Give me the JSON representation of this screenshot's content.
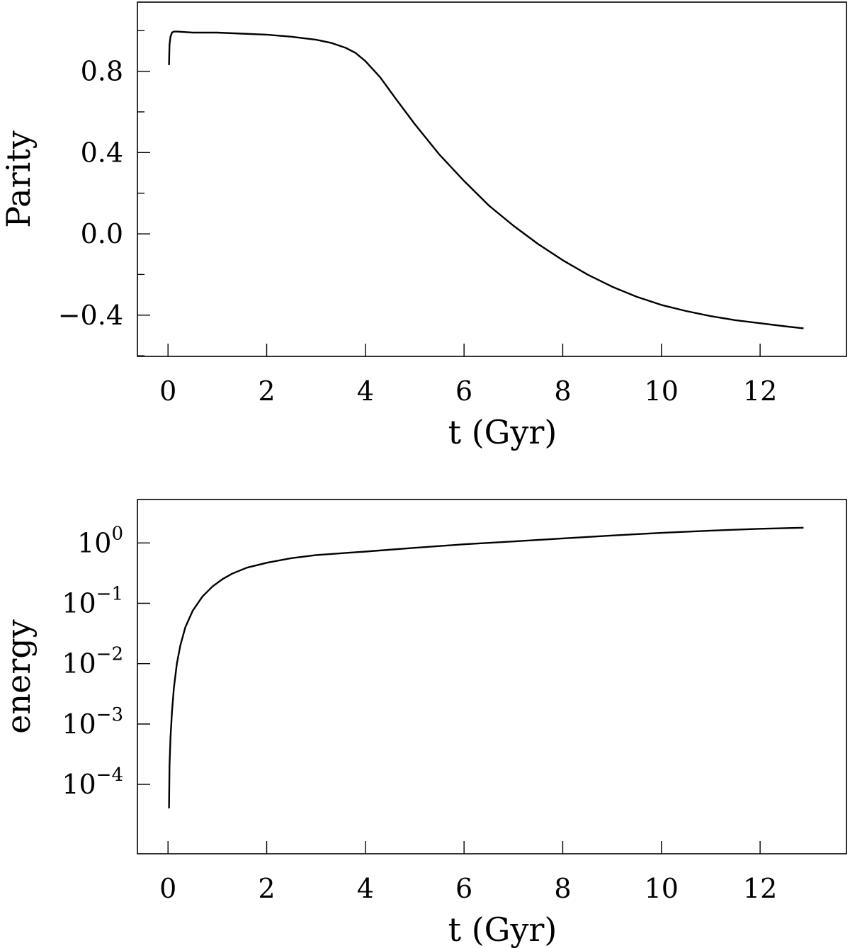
{
  "chart_data": [
    {
      "type": "line",
      "xlabel": "t (Gyr)",
      "ylabel": "Parity",
      "xlim": [
        -0.62,
        13.75
      ],
      "ylim": [
        -0.603,
        1.14
      ],
      "x_ticks": [
        0,
        2,
        4,
        6,
        8,
        10,
        12
      ],
      "y_ticks": [
        -0.4,
        0.0,
        0.4,
        0.8
      ],
      "y_minor_ticks": [
        -0.6,
        -0.2,
        0.2,
        0.6,
        1.0
      ],
      "y_tick_labels": [
        "−0.4",
        "0.0",
        "0.4",
        "0.8"
      ],
      "y_scale": "linear",
      "grid": false,
      "series": [
        {
          "x": [
            0.02,
            0.03,
            0.05,
            0.08,
            0.12,
            0.2,
            0.5,
            1.0,
            1.5,
            2.0,
            2.5,
            3.0,
            3.3,
            3.6,
            3.8,
            4.0,
            4.3,
            4.6,
            5.0,
            5.5,
            6.0,
            6.5,
            7.0,
            7.5,
            8.0,
            8.5,
            9.0,
            9.5,
            10.0,
            10.5,
            11.0,
            11.5,
            12.0,
            12.5,
            12.88
          ],
          "y": [
            0.83,
            0.93,
            0.97,
            0.99,
            0.995,
            0.995,
            0.99,
            0.99,
            0.985,
            0.98,
            0.97,
            0.955,
            0.94,
            0.915,
            0.89,
            0.85,
            0.77,
            0.67,
            0.54,
            0.39,
            0.26,
            0.14,
            0.04,
            -0.05,
            -0.13,
            -0.2,
            -0.26,
            -0.31,
            -0.35,
            -0.38,
            -0.405,
            -0.425,
            -0.44,
            -0.455,
            -0.465
          ]
        }
      ]
    },
    {
      "type": "line",
      "xlabel": "t (Gyr)",
      "ylabel": "energy",
      "xlim": [
        -0.62,
        13.75
      ],
      "ylim": [
        -5.15,
        0.72
      ],
      "x_ticks": [
        0,
        2,
        4,
        6,
        8,
        10,
        12
      ],
      "y_ticks": [
        0,
        -1,
        -2,
        -3,
        -4
      ],
      "y_tick_labels": [
        {
          "base": "10",
          "exp": "0"
        },
        {
          "base": "10",
          "exp": "−1"
        },
        {
          "base": "10",
          "exp": "−2"
        },
        {
          "base": "10",
          "exp": "−3"
        },
        {
          "base": "10",
          "exp": "−4"
        }
      ],
      "y_scale": "log",
      "grid": false,
      "series": [
        {
          "x": [
            0.02,
            0.03,
            0.05,
            0.08,
            0.12,
            0.18,
            0.25,
            0.35,
            0.5,
            0.7,
            0.9,
            1.1,
            1.3,
            1.6,
            2.0,
            2.5,
            3.0,
            4.0,
            5.0,
            6.0,
            7.0,
            8.0,
            9.0,
            10.0,
            11.0,
            12.0,
            12.88
          ],
          "y": [
            4e-05,
            0.0002,
            0.0006,
            0.0016,
            0.004,
            0.01,
            0.02,
            0.04,
            0.075,
            0.13,
            0.19,
            0.25,
            0.31,
            0.39,
            0.47,
            0.56,
            0.63,
            0.72,
            0.83,
            0.95,
            1.06,
            1.19,
            1.33,
            1.47,
            1.6,
            1.72,
            1.79
          ]
        }
      ]
    }
  ]
}
